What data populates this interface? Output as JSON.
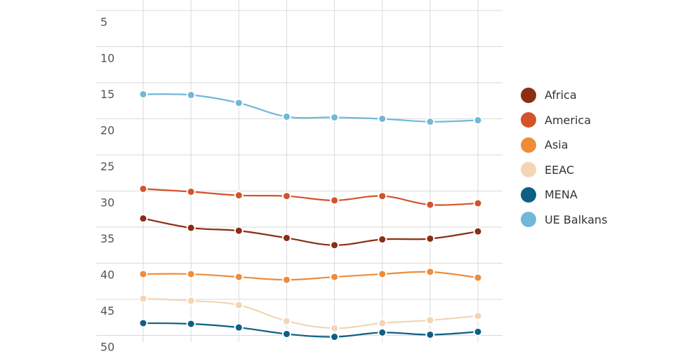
{
  "chart_data": {
    "type": "line",
    "title": "",
    "xlabel": "",
    "ylabel": "",
    "y_reversed": true,
    "ylim": [
      3,
      50
    ],
    "yticks": [
      "5",
      "10",
      "15",
      "20",
      "25",
      "30",
      "35",
      "40",
      "45",
      "50"
    ],
    "x_count": 8,
    "grid": true,
    "legend_position": "right",
    "series": [
      {
        "name": "Africa",
        "color": "#8b2e12",
        "values": [
          33.8,
          35.1,
          35.5,
          36.5,
          37.5,
          36.7,
          36.6,
          35.6
        ]
      },
      {
        "name": "America",
        "color": "#d4532a",
        "values": [
          29.7,
          30.1,
          30.6,
          30.7,
          31.3,
          30.7,
          31.9,
          31.7
        ]
      },
      {
        "name": "Asia",
        "color": "#ee8c3a",
        "values": [
          41.5,
          41.5,
          41.9,
          42.3,
          41.9,
          41.5,
          41.2,
          42.0
        ]
      },
      {
        "name": "EEAC",
        "color": "#f3d5b5",
        "values": [
          44.9,
          45.2,
          45.8,
          48.0,
          49.0,
          48.3,
          47.9,
          47.3
        ]
      },
      {
        "name": "MENA",
        "color": "#0d5f86",
        "values": [
          48.3,
          48.4,
          48.9,
          49.8,
          50.2,
          49.6,
          49.9,
          49.5
        ]
      },
      {
        "name": "UE Balkans",
        "color": "#71b8d8",
        "values": [
          16.6,
          16.7,
          17.8,
          19.7,
          19.8,
          20.0,
          20.4,
          20.2
        ]
      }
    ]
  }
}
